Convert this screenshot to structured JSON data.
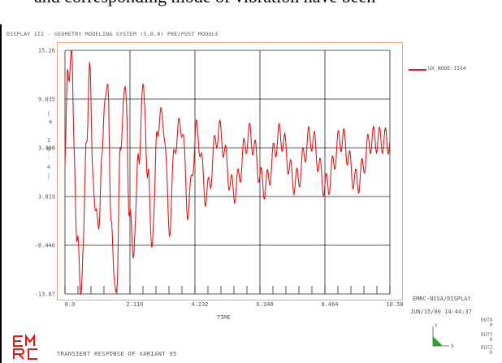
{
  "doc_text": "and corresponding mode of vibration have been",
  "window": {
    "title": "DISPLAY III - GEOMETRY MODELING SYSTEM (5.0.0)  PRE/POST MODULE"
  },
  "legend": {
    "entry": "UX_NODE:1554"
  },
  "axes": {
    "ylabel": "(\n ¥\n \n1\n0\n-\n4\n)",
    "xlabel": "TIME"
  },
  "info": {
    "program": "EMRC-NISA/DISPLAY",
    "datetime": "JUN/15/00 14:44:37"
  },
  "triad": {
    "y": "Y",
    "x": "X",
    "rotx": "ROTX",
    "rotx_val": "0",
    "roty": "ROTY",
    "roty_val": "0",
    "rotz": "ROTZ",
    "rotz_val": "0"
  },
  "footer": {
    "text": "TRANSIENT RESPONSE OF VARIANT 95"
  },
  "colors": {
    "series": "#e01818",
    "frame": "#f2a07a",
    "grid": "#222222",
    "logo": "#e01818",
    "triad": "#22aa22"
  },
  "chart_data": {
    "type": "line",
    "xlabel": "TIME",
    "xlim": [
      0.0,
      10.58
    ],
    "ylim": [
      -13.87,
      15.26
    ],
    "x_ticks": [
      "0.0",
      "2.116",
      "4.232",
      "6.348",
      "8.464",
      "10.58"
    ],
    "y_ticks": [
      "15.26",
      "9.835",
      "3.408",
      "3.019",
      "-8.446",
      "-13.87"
    ],
    "series": [
      {
        "name": "UX_NODE:1554",
        "color": "#e01818",
        "x": [
          0.0,
          0.1,
          0.2,
          0.3,
          0.4,
          0.5,
          0.6,
          0.7,
          0.8,
          0.9,
          1.0,
          1.1,
          1.2,
          1.3,
          1.4,
          1.5,
          1.6,
          1.7,
          1.8,
          1.9,
          2.0,
          2.1,
          2.2,
          2.3,
          2.4,
          2.5,
          2.6,
          2.7,
          2.8,
          2.9,
          3.0,
          3.2,
          3.4,
          3.6,
          3.8,
          4.0,
          4.3,
          4.6,
          5.0,
          5.5,
          6.0,
          6.5,
          7.0,
          7.5,
          8.0,
          8.5,
          9.0,
          9.5,
          10.0,
          10.58
        ],
        "y": [
          1.5,
          13.0,
          15.2,
          4.0,
          -8.5,
          -12.5,
          -9.0,
          6.0,
          12.0,
          3.0,
          -6.0,
          -4.0,
          0.5,
          11.5,
          9.0,
          -3.0,
          -13.87,
          -11.0,
          2.0,
          10.5,
          8.0,
          -3.5,
          -9.5,
          -4.0,
          2.0,
          9.5,
          8.5,
          0.0,
          -6.5,
          -5.0,
          6.5,
          7.0,
          -5.5,
          4.5,
          6.5,
          -3.5,
          5.5,
          -2.0,
          5.5,
          -1.5,
          5.0,
          -1.0,
          5.0,
          -0.5,
          4.8,
          -1.0,
          4.7,
          -0.5,
          4.6,
          4.4
        ]
      }
    ]
  }
}
